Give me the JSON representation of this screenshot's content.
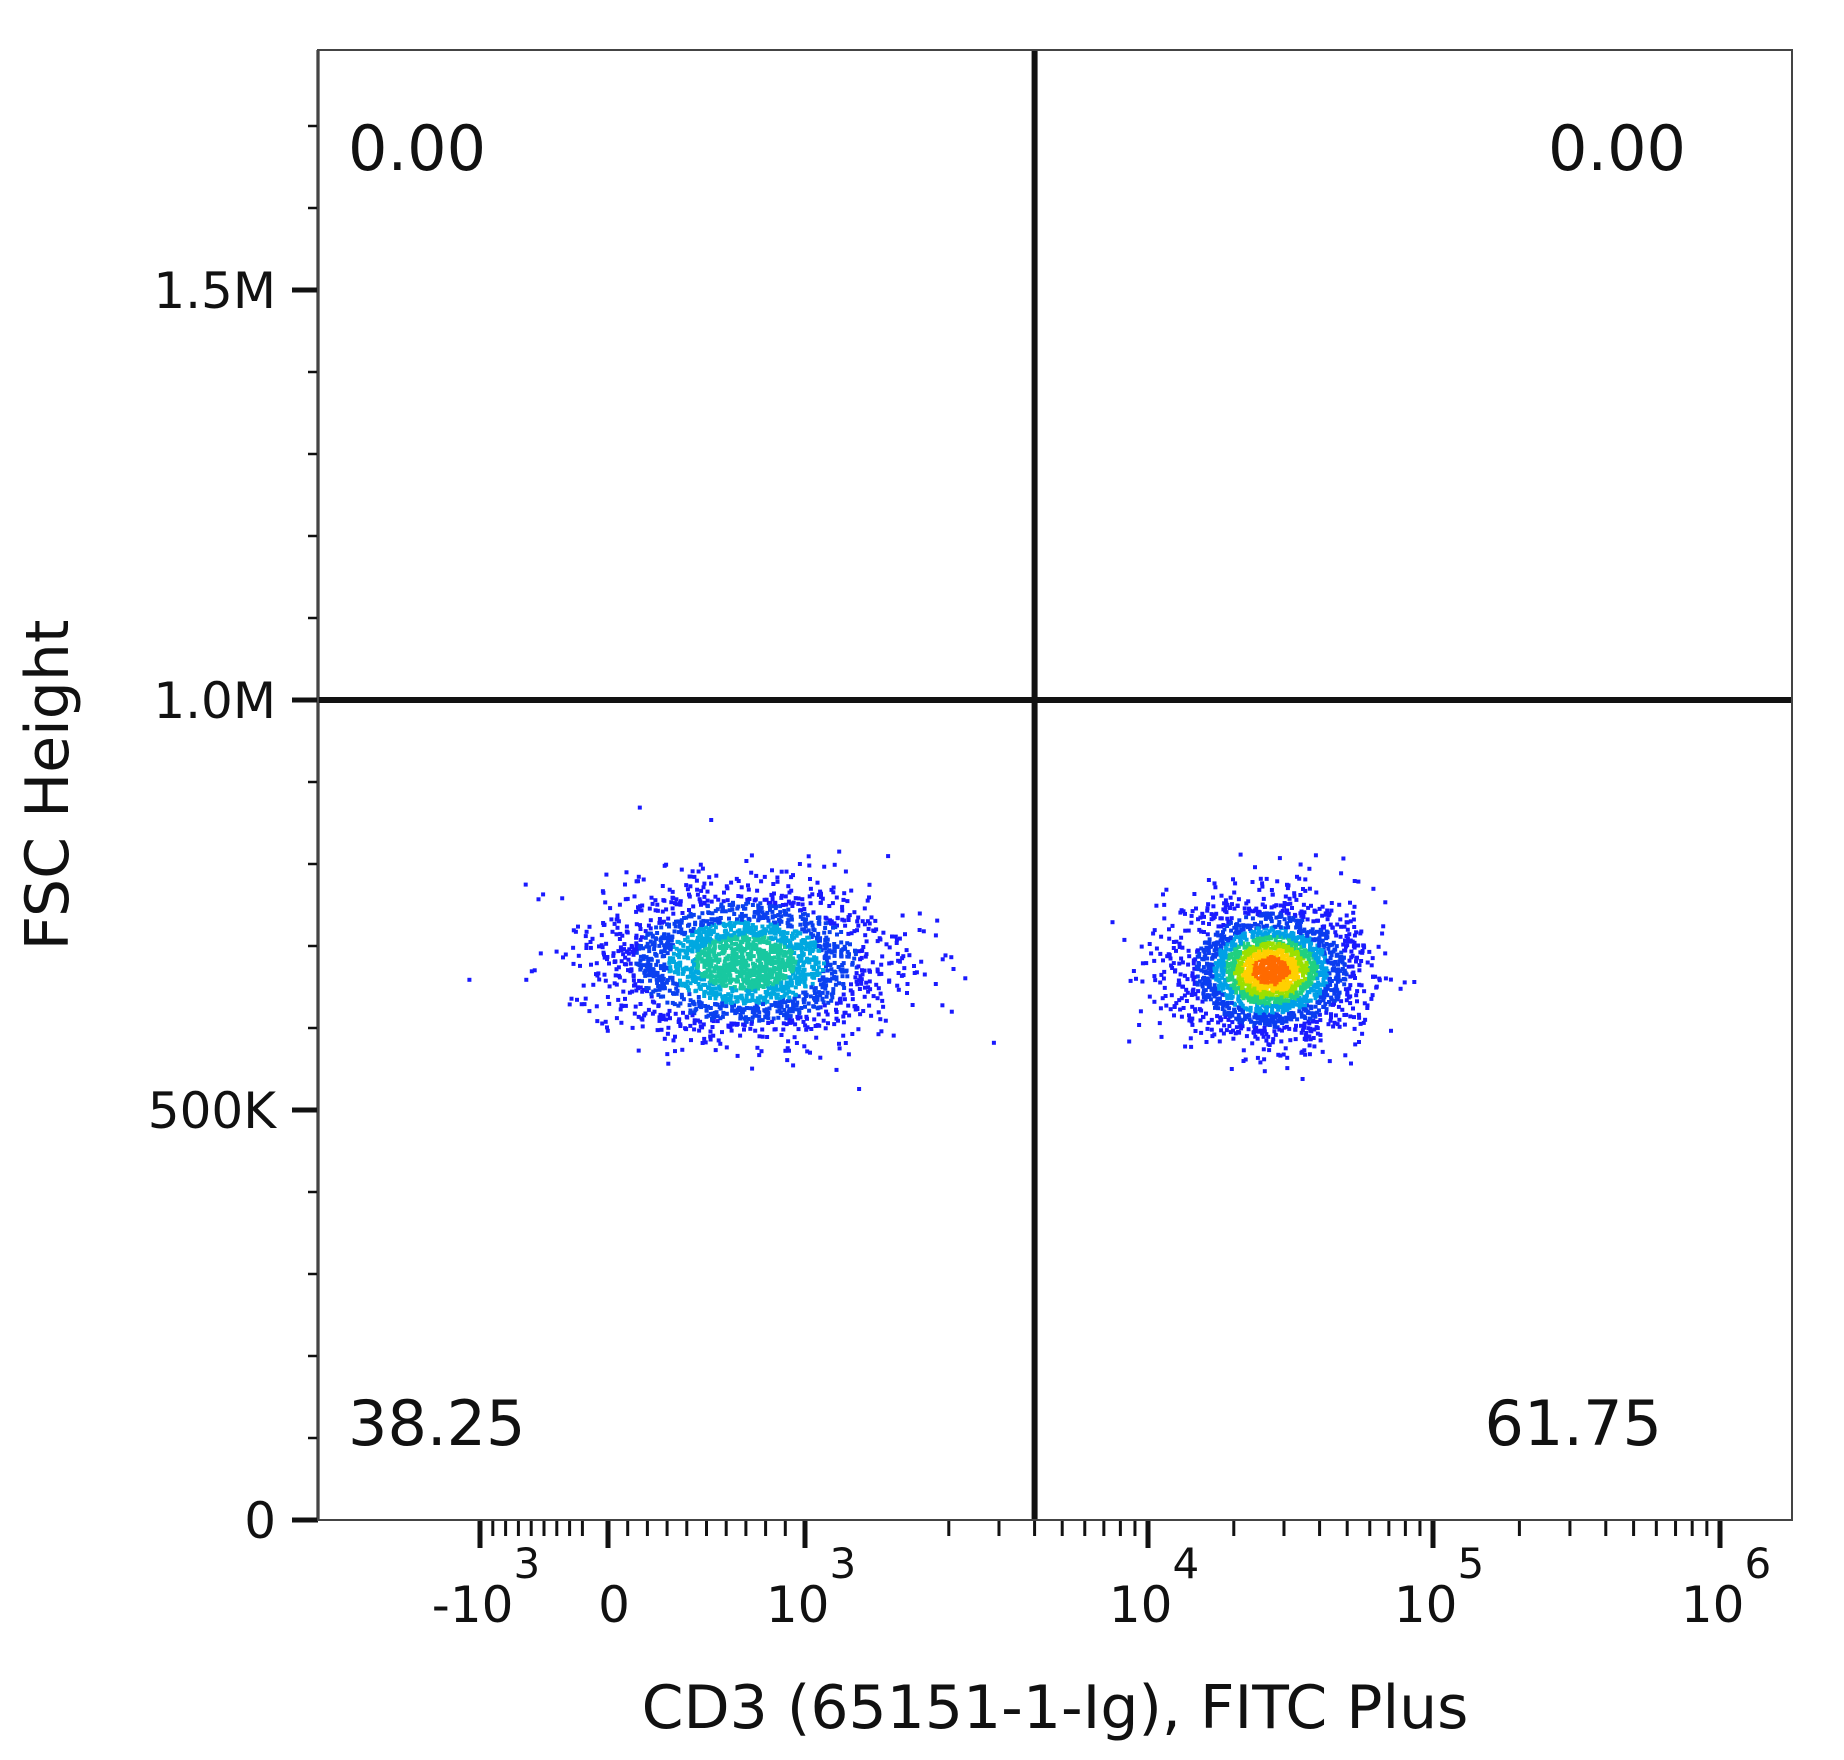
{
  "chart_data": {
    "type": "scatter",
    "title": "",
    "xlabel": "CD3 (65151-1-Ig), FITC Plus",
    "ylabel": "FSC Height",
    "x_scale": "biexponential",
    "y_scale": "linear",
    "ylim": [
      0,
      1800000
    ],
    "y_ticks": [
      {
        "value": 0,
        "label": "0"
      },
      {
        "value": 500000,
        "label": "500K"
      },
      {
        "value": 1000000,
        "label": "1.0M"
      },
      {
        "value": 1500000,
        "label": "1.5M"
      }
    ],
    "x_ticks": [
      {
        "value": -1000,
        "base": "-10",
        "exp": "3"
      },
      {
        "value": 0,
        "base": "0",
        "exp": ""
      },
      {
        "value": 1000,
        "base": "10",
        "exp": "3"
      },
      {
        "value": 10000,
        "base": "10",
        "exp": "4"
      },
      {
        "value": 100000,
        "base": "10",
        "exp": "5"
      },
      {
        "value": 1000000,
        "base": "10",
        "exp": "6"
      }
    ],
    "quadrant_gates": {
      "x": 4000,
      "y": 1000000
    },
    "quadrant_percentages": {
      "upper_left": "0.00",
      "upper_right": "0.00",
      "lower_left": "38.25",
      "lower_right": "61.75"
    },
    "populations": [
      {
        "center_x": 700,
        "center_y": 680000,
        "spread_x_log": 0.35,
        "spread_y": 45000,
        "peak_density": "green"
      },
      {
        "center_x": 27000,
        "center_y": 670000,
        "spread_x_log": 0.28,
        "spread_y": 40000,
        "peak_density": "red"
      }
    ],
    "grid": false,
    "legend": "none"
  }
}
